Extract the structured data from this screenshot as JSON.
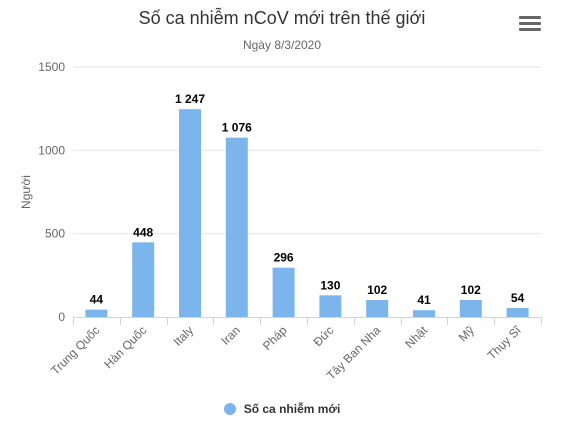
{
  "header": {
    "title": "Số ca nhiễm nCoV mới trên thế giới",
    "subtitle": "Ngày 8/3/2020",
    "menu_icon": "hamburger-menu-icon"
  },
  "colors": {
    "bar": "#7cb5ec",
    "grid": "#e6e6e6",
    "axis": "#ccd6eb"
  },
  "chart_data": {
    "type": "bar",
    "title": "Số ca nhiễm nCoV mới trên thế giới",
    "subtitle": "Ngày 8/3/2020",
    "xlabel": "",
    "ylabel": "Người",
    "ylim": [
      0,
      1500
    ],
    "yticks": [
      "0",
      "500",
      "1000",
      "1500"
    ],
    "grid": true,
    "legend_position": "bottom-center",
    "categories": [
      "Trung Quốc",
      "Hàn Quốc",
      "Italy",
      "Iran",
      "Pháp",
      "Đức",
      "Tây Ban Nha",
      "Nhật",
      "Mỹ",
      "Thụy Sĩ"
    ],
    "series": [
      {
        "name": "Số ca nhiễm mới",
        "values": [
          44,
          448,
          1247,
          1076,
          296,
          130,
          102,
          41,
          102,
          54
        ],
        "labels": [
          "44",
          "448",
          "1 247",
          "1 076",
          "296",
          "130",
          "102",
          "41",
          "102",
          "54"
        ]
      }
    ]
  }
}
